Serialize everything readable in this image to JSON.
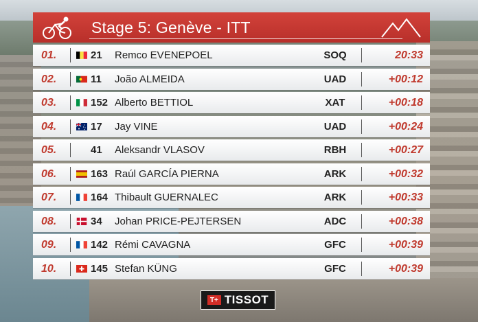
{
  "header": {
    "title": "Stage 5: Genève - ITT"
  },
  "rows": [
    {
      "pos": "01.",
      "flag": "belgium-flag-icon",
      "number": "21",
      "name": "Remco EVENEPOEL",
      "team": "SOQ",
      "time": "20:33"
    },
    {
      "pos": "02.",
      "flag": "portugal-flag-icon",
      "number": "11",
      "name": "João ALMEIDA",
      "team": "UAD",
      "time": "+00:12"
    },
    {
      "pos": "03.",
      "flag": "italy-flag-icon",
      "number": "152",
      "name": "Alberto BETTIOL",
      "team": "XAT",
      "time": "+00:18"
    },
    {
      "pos": "04.",
      "flag": "australia-flag-icon",
      "number": "17",
      "name": "Jay VINE",
      "team": "UAD",
      "time": "+00:24"
    },
    {
      "pos": "05.",
      "flag": "",
      "number": "41",
      "name": "Aleksandr VLASOV",
      "team": "RBH",
      "time": "+00:27"
    },
    {
      "pos": "06.",
      "flag": "spain-flag-icon",
      "number": "163",
      "name": "Raúl GARCÍA PIERNA",
      "team": "ARK",
      "time": "+00:32"
    },
    {
      "pos": "07.",
      "flag": "france-flag-icon",
      "number": "164",
      "name": "Thibault GUERNALEC",
      "team": "ARK",
      "time": "+00:33"
    },
    {
      "pos": "08.",
      "flag": "denmark-flag-icon",
      "number": "34",
      "name": "Johan PRICE-PEJTERSEN",
      "team": "ADC",
      "time": "+00:38"
    },
    {
      "pos": "09.",
      "flag": "france-flag-icon",
      "number": "142",
      "name": "Rémi CAVAGNA",
      "team": "GFC",
      "time": "+00:39"
    },
    {
      "pos": "10.",
      "flag": "switzerland-flag-icon",
      "number": "145",
      "name": "Stefan KÜNG",
      "team": "GFC",
      "time": "+00:39"
    }
  ],
  "sponsor": {
    "mark": "T+",
    "brand": "TISSOT"
  },
  "colors": {
    "header_red": "#c83a33",
    "time_red": "#c03a2e"
  }
}
